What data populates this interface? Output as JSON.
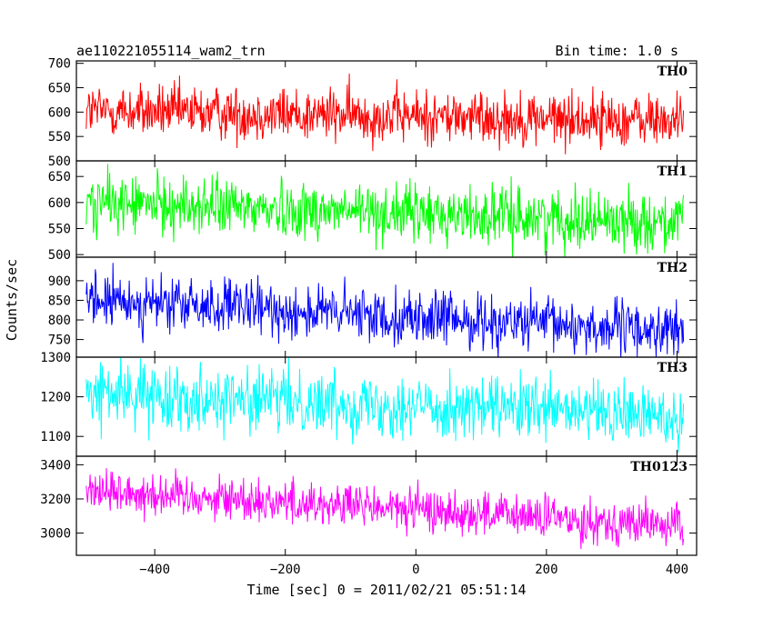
{
  "chart_data": {
    "type": "line",
    "title": "ae110221055114_wam2_trn",
    "subtitle": "Bin time: 1.0 s",
    "xlabel": "Time [sec] 0 = 2011/02/21 05:51:14",
    "ylabel": "Counts/sec",
    "xlim": [
      -520,
      430
    ],
    "x_ticks": [
      -400,
      -200,
      0,
      200,
      400
    ],
    "x_tick_labels": [
      "−400",
      "−200",
      "0",
      "200",
      "400"
    ],
    "x_range": [
      -505,
      410
    ],
    "panels": [
      {
        "name": "TH0",
        "color": "#ff0000",
        "ylim": [
          500,
          705
        ],
        "y_ticks": [
          500,
          550,
          600,
          650,
          700
        ],
        "mean_start": 603,
        "mean_end": 582,
        "spread": 28
      },
      {
        "name": "TH1",
        "color": "#00ff00",
        "ylim": [
          495,
          680
        ],
        "y_ticks": [
          500,
          550,
          600,
          650
        ],
        "mean_start": 600,
        "mean_end": 562,
        "spread": 28
      },
      {
        "name": "TH2",
        "color": "#0000ff",
        "ylim": [
          705,
          960
        ],
        "y_ticks": [
          750,
          800,
          850,
          900
        ],
        "mean_start": 850,
        "mean_end": 770,
        "spread": 35
      },
      {
        "name": "TH3",
        "color": "#00ffff",
        "ylim": [
          1050,
          1300
        ],
        "y_ticks": [
          1100,
          1200,
          1300
        ],
        "mean_start": 1210,
        "mean_end": 1150,
        "spread": 40
      },
      {
        "name": "TH0123",
        "color": "#ff00ff",
        "ylim": [
          2870,
          3450
        ],
        "y_ticks": [
          3000,
          3200,
          3400
        ],
        "mean_start": 3255,
        "mean_end": 3040,
        "spread": 65
      }
    ]
  }
}
